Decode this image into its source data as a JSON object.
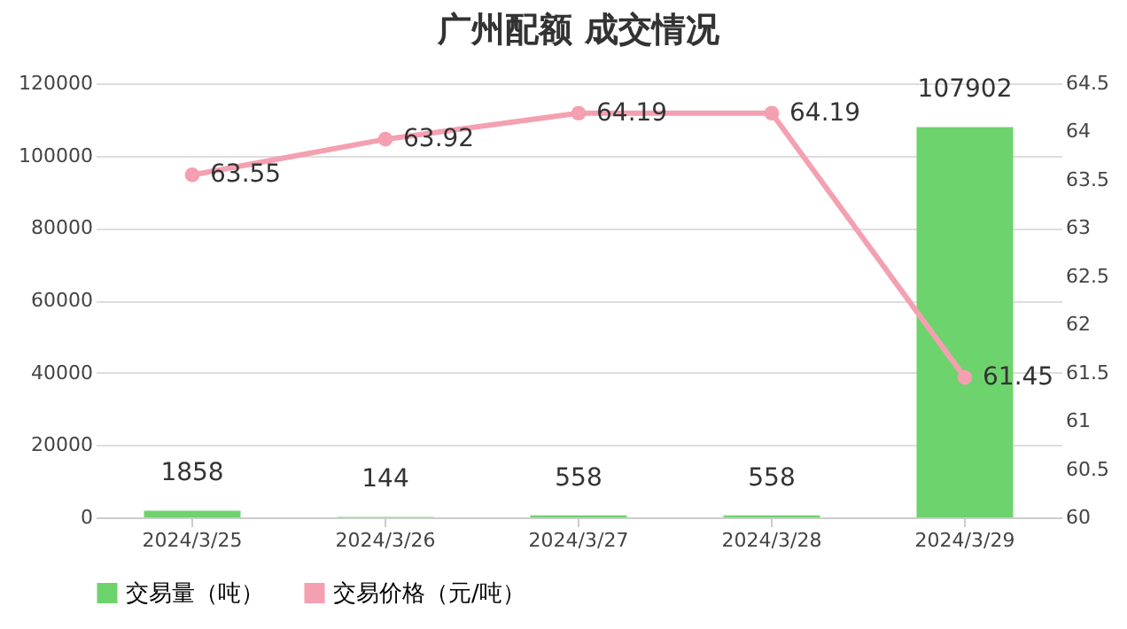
{
  "chart_data": {
    "type": "bar",
    "title": "广州配额 成交情况",
    "categories": [
      "2024/3/25",
      "2024/3/26",
      "2024/3/27",
      "2024/3/28",
      "2024/3/29"
    ],
    "series": [
      {
        "name": "交易量（吨）",
        "color": "#6dd36d",
        "values": [
          1858,
          144,
          558,
          558,
          107902
        ]
      },
      {
        "name": "交易价格（元/吨）",
        "type": "line",
        "axis": "y2",
        "color": "#f4a0b0",
        "marker": "circle",
        "values": [
          63.55,
          63.92,
          64.19,
          64.19,
          61.45
        ]
      }
    ],
    "ylim": [
      0,
      120000
    ],
    "yticks": [
      0,
      20000,
      40000,
      60000,
      80000,
      100000,
      120000
    ],
    "y2lim": [
      60,
      64.5
    ],
    "y2ticks": [
      60,
      60.5,
      61,
      61.5,
      62,
      62.5,
      63,
      63.5,
      64,
      64.5
    ],
    "grid": "y",
    "legend": "bottom",
    "data_labels": true
  }
}
